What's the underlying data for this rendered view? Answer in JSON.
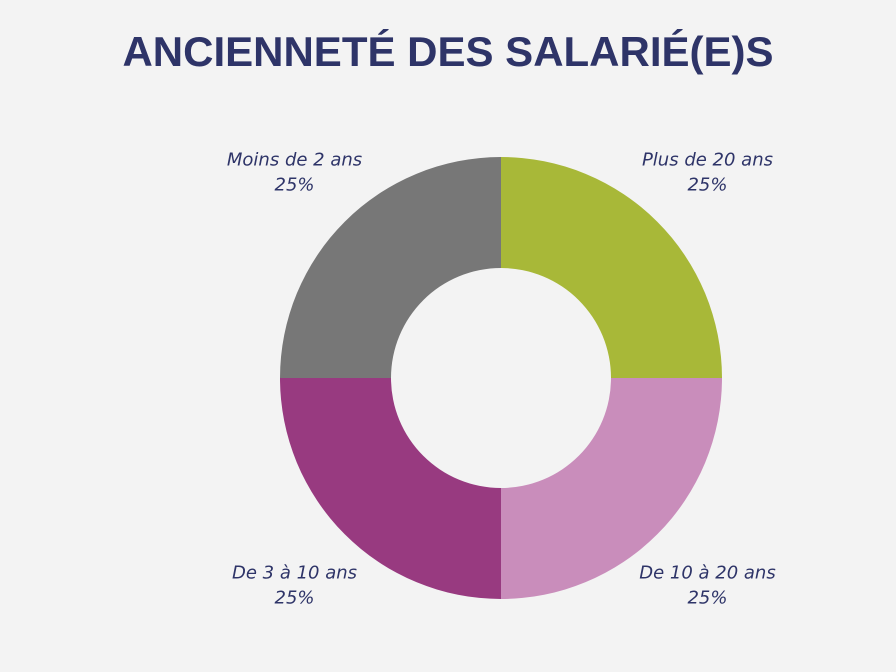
{
  "chart_data": {
    "type": "donut",
    "title": "ANCIENNETÉ DES SALARIÉ(E)S",
    "categories": [
      "Plus de 20 ans",
      "De 10 à 20 ans",
      "De 3 à 10 ans",
      "Moins de 2 ans"
    ],
    "values": [
      25,
      25,
      25,
      25
    ],
    "value_labels": [
      "25%",
      "25%",
      "25%",
      "25%"
    ],
    "colors": [
      "#a8b838",
      "#c98dbb",
      "#983a80",
      "#777777"
    ]
  }
}
